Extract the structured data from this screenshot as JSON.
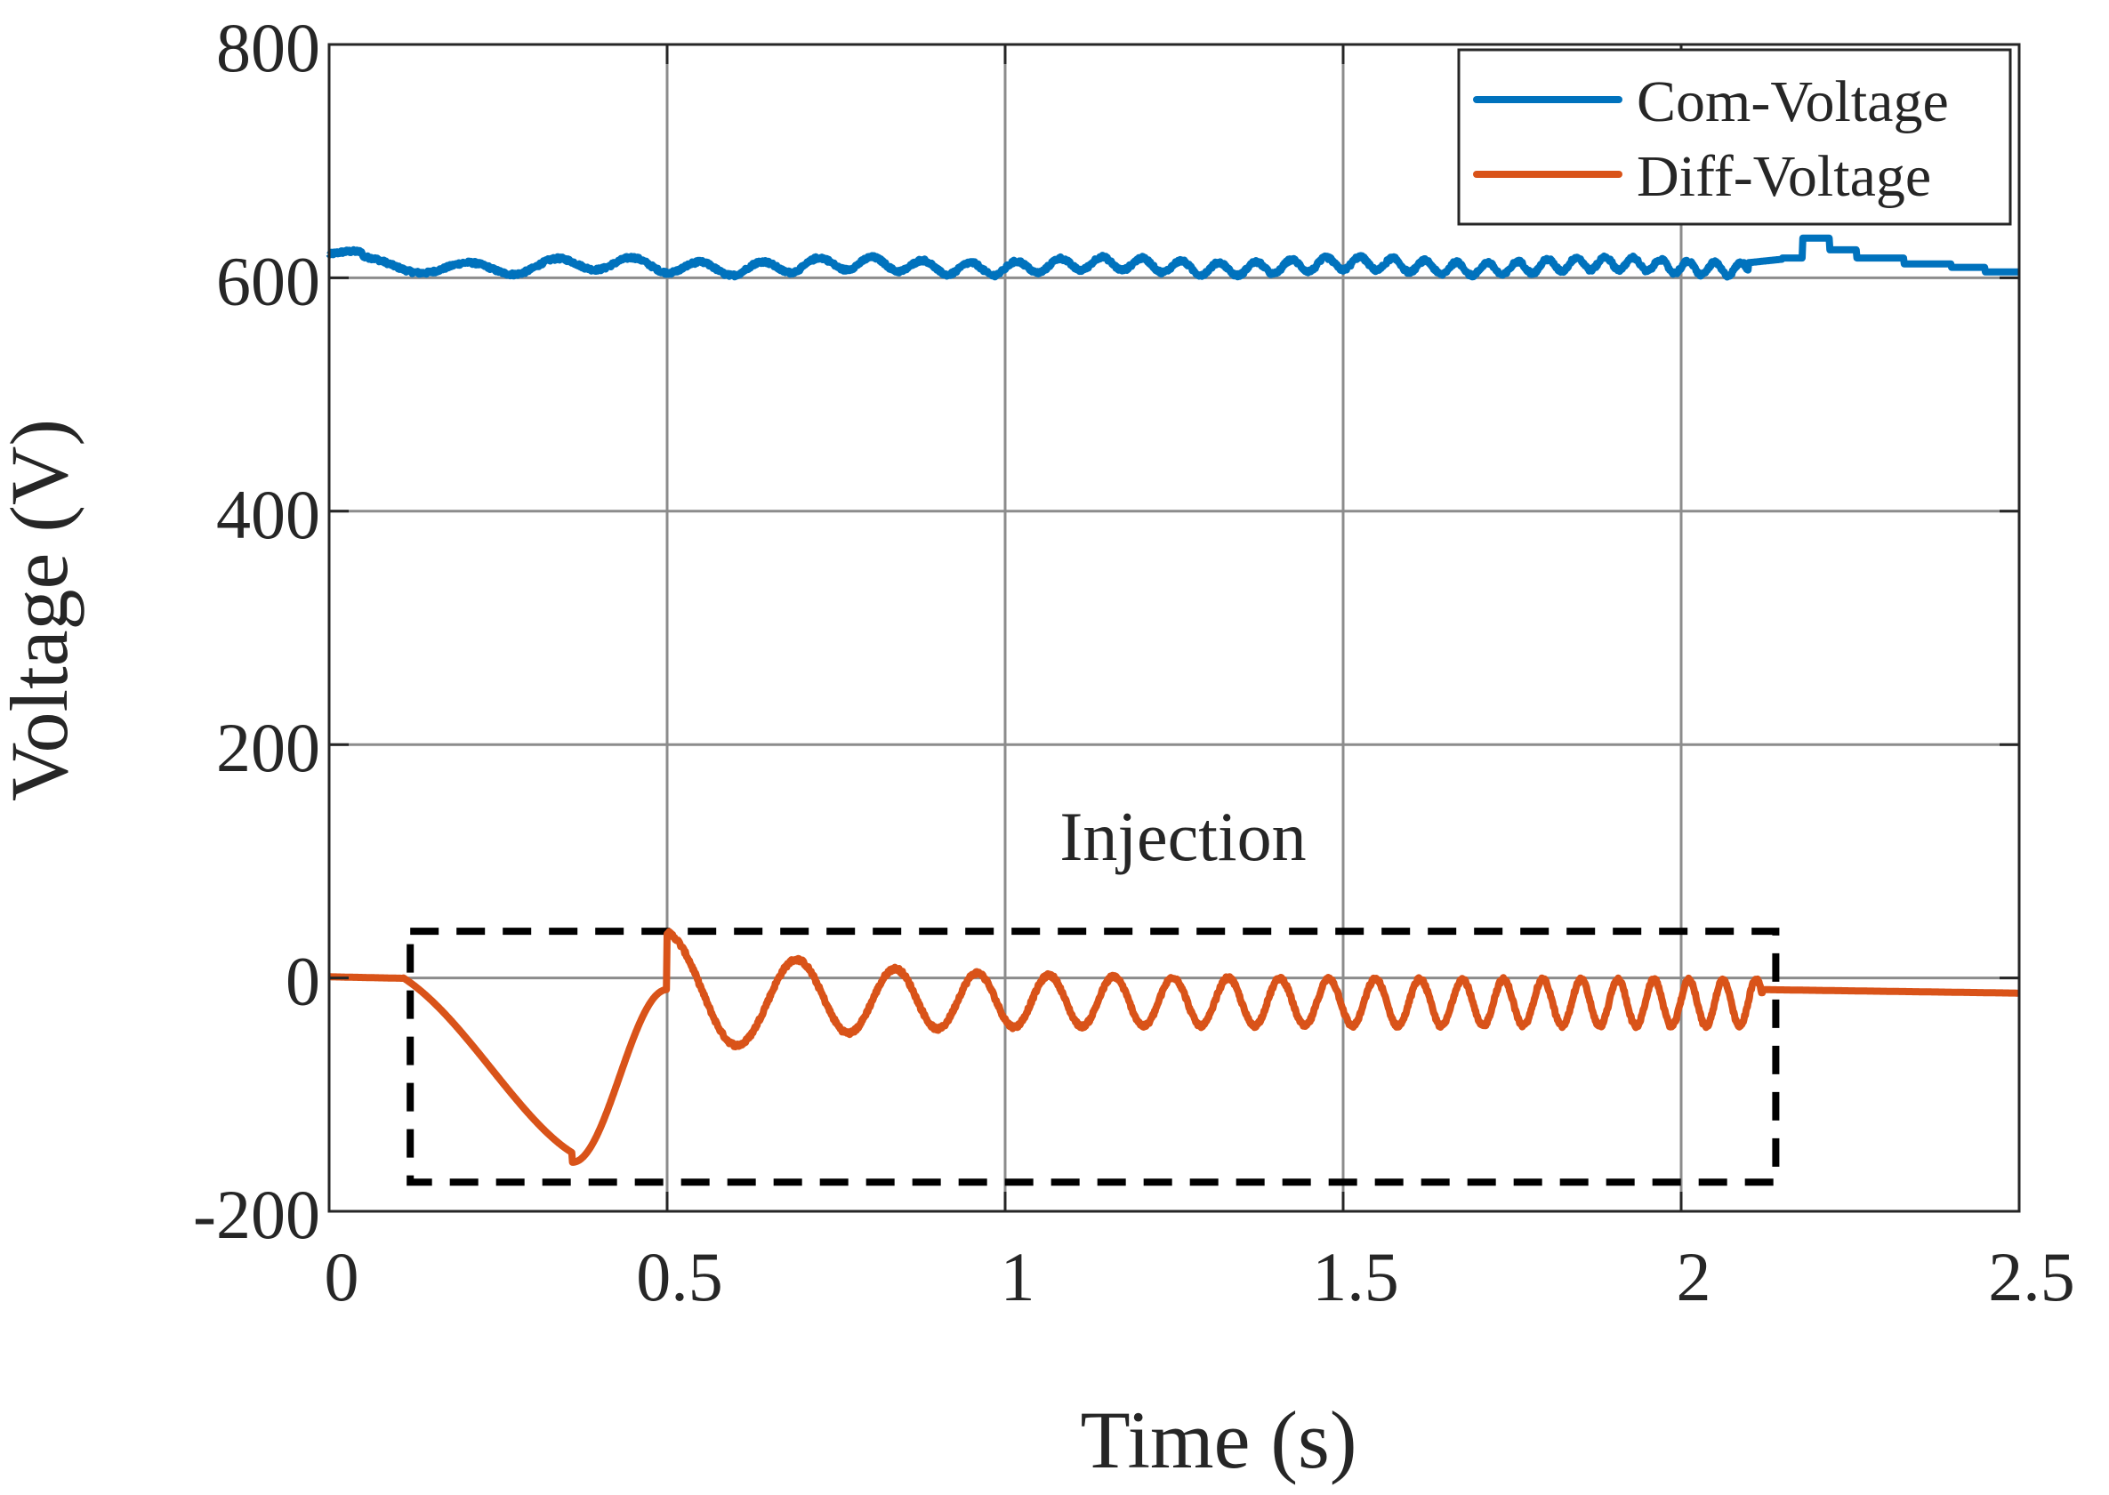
{
  "chart_data": {
    "type": "line",
    "title": "",
    "xlabel": "Time (s)",
    "ylabel": "Voltage (V)",
    "xlim": [
      0,
      2.5
    ],
    "ylim": [
      -200,
      800
    ],
    "xticks": [
      0,
      0.5,
      1,
      1.5,
      2,
      2.5
    ],
    "xtick_labels": [
      "0",
      "0.5",
      "1",
      "1.5",
      "2",
      "2.5"
    ],
    "yticks": [
      -200,
      0,
      200,
      400,
      600,
      800
    ],
    "ytick_labels": [
      "-200",
      "0",
      "200",
      "400",
      "600",
      "800"
    ],
    "grid": true,
    "legend_position": "top-right",
    "series": [
      {
        "name": "Com-Voltage",
        "color": "#0072BD",
        "description_points": {
          "x": [
            0,
            0.05,
            0.1,
            0.15,
            0.2,
            0.25,
            0.3,
            0.35,
            0.4,
            0.45,
            0.5,
            0.55,
            0.6,
            0.65,
            0.7,
            0.75,
            0.8,
            0.85,
            0.9,
            0.95,
            1.0,
            1.05,
            1.1,
            1.15,
            1.2,
            1.25,
            1.3,
            1.35,
            1.4,
            1.45,
            1.5,
            1.55,
            1.6,
            1.65,
            1.7,
            1.75,
            1.8,
            1.85,
            1.9,
            1.95,
            2.0,
            2.05,
            2.1,
            2.15,
            2.2,
            2.25,
            2.3,
            2.35,
            2.4,
            2.45,
            2.5
          ],
          "y": [
            618,
            614,
            615,
            605,
            610,
            612,
            616,
            606,
            614,
            612,
            610,
            614,
            613,
            610,
            615,
            616,
            610,
            617,
            608,
            615,
            609,
            612,
            614,
            609,
            613,
            610,
            614,
            612,
            611,
            614,
            609,
            612,
            610,
            613,
            610,
            613,
            609,
            611,
            608,
            612,
            610,
            612,
            615,
            615,
            634,
            624,
            617,
            613,
            609,
            607,
            604
          ]
        },
        "base_level": 612,
        "oscillation": "small ripple (~5-10 V) around 610 V, increasing in frequency with time; step bump to ~635 V near t = 2.2 s then slowly decays to ~605 V"
      },
      {
        "name": "Diff-Voltage",
        "color": "#D95319",
        "description_points": {
          "x": [
            0,
            0.05,
            0.11,
            0.2,
            0.3,
            0.36,
            0.4,
            0.45,
            0.5,
            0.56,
            0.6,
            0.66,
            0.72,
            0.78,
            0.84,
            0.9,
            0.95,
            1.0,
            1.05,
            1.1,
            1.2,
            1.3,
            1.4,
            1.5,
            1.6,
            1.7,
            1.8,
            1.9,
            2.0,
            2.1,
            2.12,
            2.2,
            2.3,
            2.4,
            2.5
          ],
          "y": [
            2,
            0,
            -2,
            -60,
            -140,
            -155,
            -120,
            -45,
            -10,
            -70,
            -40,
            5,
            -50,
            5,
            -45,
            10,
            -35,
            10,
            -30,
            10,
            -30,
            5,
            -30,
            0,
            -35,
            0,
            -35,
            -5,
            -35,
            -5,
            -10,
            -12,
            -16,
            -15,
            -12
          ]
        },
        "oscillation": "chirp: damped swing to -160 V at t ≈ 0.35 s, then oscillation between about -40 V and +10 V with frequency rising steadily from ~8 Hz to ~25 Hz until t ≈ 2.12 s; afterwards settles near -12 V"
      }
    ],
    "annotations": [
      {
        "text": "Injection",
        "type": "dashed-box",
        "x_range": [
          0.12,
          2.14
        ],
        "y_range": [
          -175,
          40
        ],
        "color": "#000000"
      }
    ]
  }
}
